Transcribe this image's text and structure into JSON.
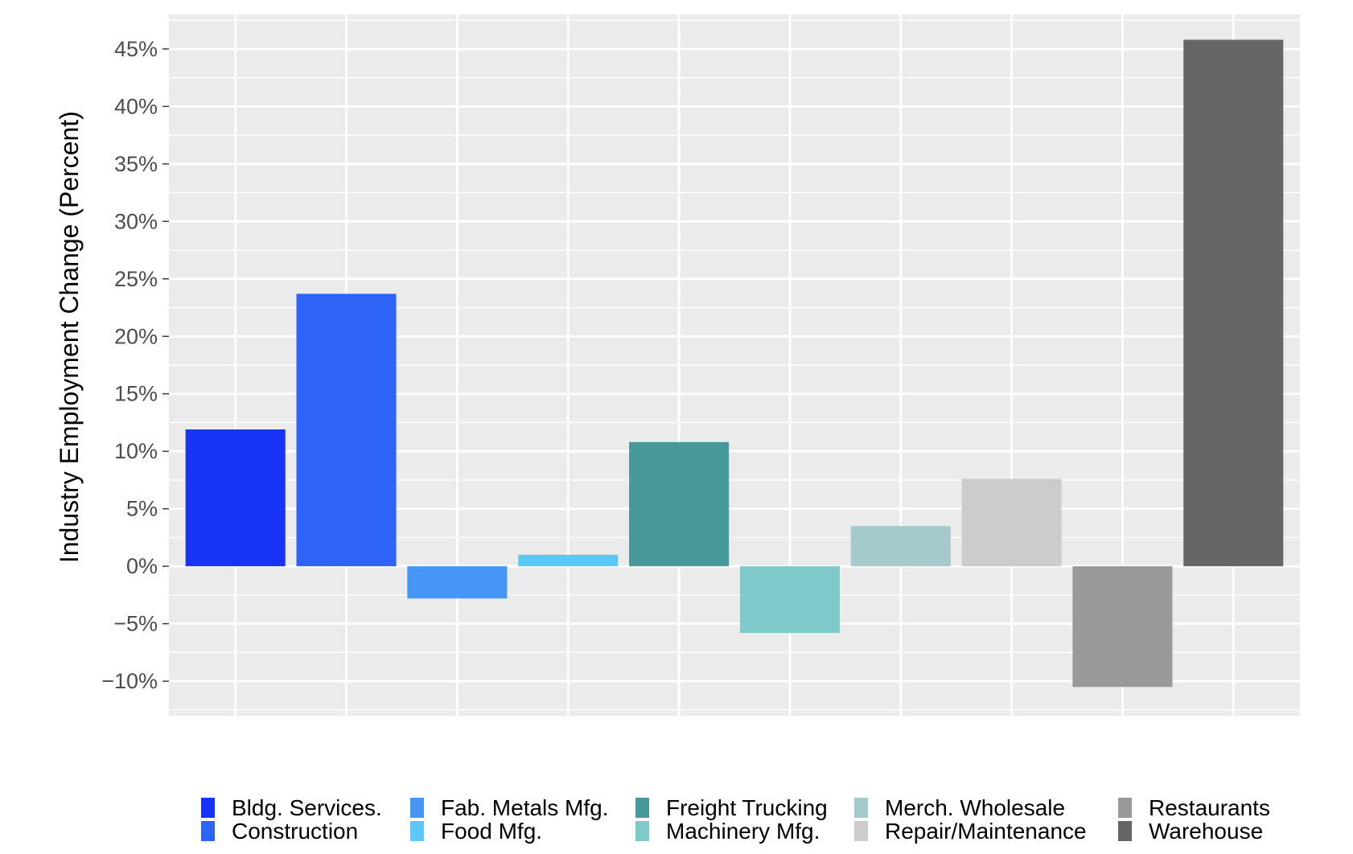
{
  "chart_data": {
    "type": "bar",
    "ylabel": "Industry Employment Change (Percent)",
    "xlabel": "",
    "ylim": [
      -13,
      48
    ],
    "yticks": [
      -10,
      -5,
      0,
      5,
      10,
      15,
      20,
      25,
      30,
      35,
      40,
      45
    ],
    "ytick_labels": [
      "−10%",
      "−5%",
      "0%",
      "5%",
      "10%",
      "15%",
      "20%",
      "25%",
      "30%",
      "35%",
      "40%",
      "45%"
    ],
    "grid": true,
    "legend_position": "bottom",
    "categories": [
      "Bldg. Services.",
      "Construction",
      "Fab. Metals Mfg.",
      "Food Mfg.",
      "Freight Trucking",
      "Machinery Mfg.",
      "Merch. Wholesale",
      "Repair/Maintenance",
      "Restaurants",
      "Warehouse"
    ],
    "values": [
      11.9,
      23.7,
      -2.8,
      1.0,
      10.8,
      -5.8,
      3.5,
      7.6,
      -10.5,
      45.8
    ],
    "colors": [
      "#1633f6",
      "#2d64f5",
      "#4696f8",
      "#5bc8f8",
      "#46989a",
      "#80c9ca",
      "#a4cacb",
      "#cccccc",
      "#999999",
      "#666666"
    ],
    "panel_background": "#ebebeb",
    "grid_color": "#ffffff"
  }
}
